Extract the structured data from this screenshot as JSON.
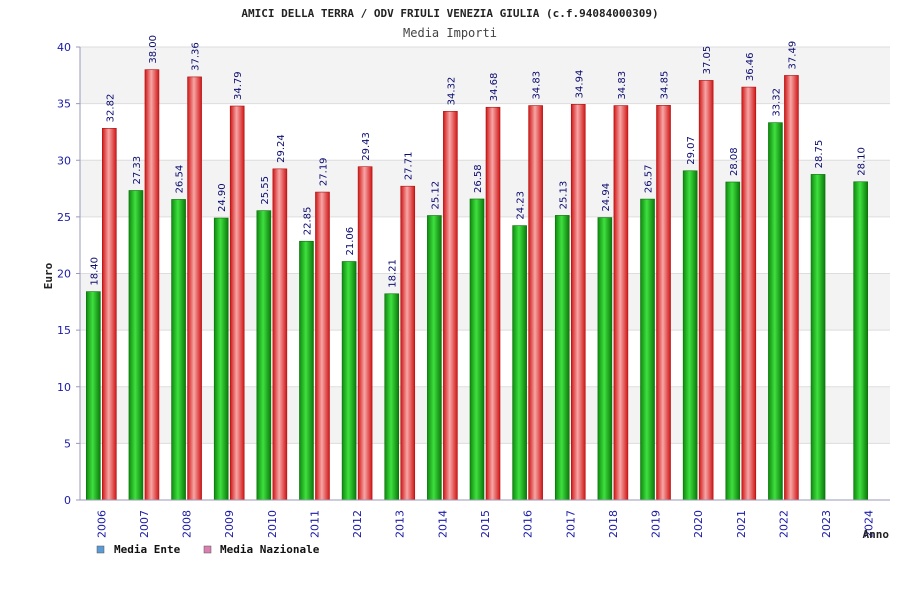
{
  "chart_data": {
    "type": "bar",
    "title": "AMICI DELLA TERRA / ODV FRIULI VENEZIA GIULIA (c.f.94084000309)",
    "subtitle": "Media Importi",
    "ylabel": "Euro",
    "xlabel": "Anno",
    "ylim": [
      0,
      40
    ],
    "yticks": [
      0,
      5,
      10,
      15,
      20,
      25,
      30,
      35,
      40
    ],
    "grid": true,
    "legend_position": "bottom-left",
    "categories": [
      "2006",
      "2007",
      "2008",
      "2009",
      "2010",
      "2011",
      "2012",
      "2013",
      "2014",
      "2015",
      "2016",
      "2017",
      "2018",
      "2019",
      "2020",
      "2021",
      "2022",
      "2023",
      "2024"
    ],
    "series": [
      {
        "name": "Media Ente",
        "color": "#22bb22",
        "legend_color": "#5b9bd5",
        "values": [
          18.4,
          27.33,
          26.54,
          24.9,
          25.55,
          22.85,
          21.06,
          18.21,
          25.12,
          26.58,
          24.23,
          25.13,
          24.94,
          26.57,
          29.07,
          28.08,
          33.32,
          28.75,
          28.1
        ],
        "labels": [
          "18.40",
          "27.33",
          "26.54",
          "24.90",
          "25.55",
          "22.85",
          "21.06",
          "18.21",
          "25.12",
          "26.58",
          "24.23",
          "25.13",
          "24.94",
          "26.57",
          "29.07",
          "28.08",
          "33.32",
          "28.75",
          "28.10"
        ]
      },
      {
        "name": "Media Nazionale",
        "color": "#ee2222",
        "legend_color": "#d980b0",
        "values": [
          32.82,
          38.0,
          37.36,
          34.79,
          29.24,
          27.19,
          29.43,
          27.71,
          34.32,
          34.68,
          34.83,
          34.94,
          34.83,
          34.85,
          37.05,
          36.46,
          37.49,
          null,
          null
        ],
        "labels": [
          "32.82",
          "38.00",
          "37.36",
          "34.79",
          "29.24",
          "27.19",
          "29.43",
          "27.71",
          "34.32",
          "34.68",
          "34.83",
          "34.94",
          "34.83",
          "34.85",
          "37.05",
          "36.46",
          "37.49",
          "",
          ""
        ]
      }
    ]
  }
}
